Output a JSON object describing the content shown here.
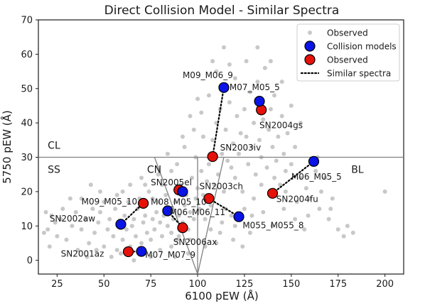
{
  "chart_data": {
    "type": "scatter",
    "title": "Direct Collision Model - Similar Spectra",
    "xlabel": "6100 pEW (Å)",
    "ylabel": "5750 pEW (Å)",
    "xlim": [
      15,
      210
    ],
    "ylim": [
      -4,
      70
    ],
    "xticks": [
      25,
      50,
      75,
      100,
      125,
      150,
      175,
      200
    ],
    "yticks": [
      0,
      10,
      20,
      30,
      40,
      50,
      60,
      70
    ],
    "grid": false,
    "legend_position": "top-right",
    "colors": {
      "background_points": "#c8c8c8",
      "collision_models": "#0a14e6",
      "observed": "#e6120a",
      "marker_edge": "#000000",
      "region_lines": "#808080"
    },
    "legend": [
      {
        "label": "Observed",
        "kind": "small-grey-dot"
      },
      {
        "label": "Collision models",
        "kind": "blue-circle"
      },
      {
        "label": "Observed",
        "kind": "red-circle"
      },
      {
        "label": "Similar spectra",
        "kind": "dotted-line"
      }
    ],
    "region_labels": [
      {
        "text": "CL",
        "x": 20,
        "y": 32.5
      },
      {
        "text": "SS",
        "x": 20,
        "y": 25.5
      },
      {
        "text": "CN",
        "x": 73,
        "y": 25.5
      },
      {
        "text": "BL",
        "x": 182,
        "y": 25.5
      }
    ],
    "boundaries": [
      {
        "x": [
          15,
          210
        ],
        "y": [
          30,
          30
        ]
      },
      {
        "x": [
          100,
          100
        ],
        "y": [
          -4,
          30
        ]
      },
      {
        "x": [
          77,
          100
        ],
        "y": [
          30,
          -4
        ]
      },
      {
        "x": [
          100,
          114
        ],
        "y": [
          -4,
          30
        ]
      }
    ],
    "pairs": [
      {
        "model": {
          "name": "M09_M06_9",
          "x": 114,
          "y": 50.3
        },
        "observed": {
          "name": "SN2003iv",
          "x": 108,
          "y": 30.2
        }
      },
      {
        "model": {
          "name": "M07_M05_5",
          "x": 133,
          "y": 46.3
        },
        "observed": {
          "name": "SN2004gs",
          "x": 134,
          "y": 43.8
        }
      },
      {
        "model": {
          "name": "M06_M05_5",
          "x": 162,
          "y": 28.8
        },
        "observed": {
          "name": "SN2004fu",
          "x": 140,
          "y": 19.5
        }
      },
      {
        "model": {
          "name": "M08_M05_10",
          "x": 92,
          "y": 20
        },
        "observed": {
          "name": "SN2005el",
          "x": 90,
          "y": 20.5
        }
      },
      {
        "model": {
          "name": "M06_M06_11",
          "x": 84,
          "y": 14.4
        },
        "observed": {
          "name": "SN2006ax",
          "x": 92,
          "y": 9.5
        }
      },
      {
        "model": {
          "name": "M055_M055_8",
          "x": 122,
          "y": 12.7
        },
        "observed": {
          "name": "SN2003ch",
          "x": 106,
          "y": 18
        }
      },
      {
        "model": {
          "name": "M09_M05_10",
          "x": 59,
          "y": 10.5
        },
        "observed": {
          "name": "SN2002aw",
          "x": 71,
          "y": 16.6
        }
      },
      {
        "model": {
          "name": "M07_M07_9",
          "x": 70,
          "y": 2.6
        },
        "observed": {
          "name": "SN2001az",
          "x": 63,
          "y": 2.5
        }
      }
    ],
    "annotations": [
      {
        "text": "M09_M06_9",
        "x": 92,
        "y": 53
      },
      {
        "text": "M07_M05_5",
        "x": 117,
        "y": 49.5
      },
      {
        "text": "SN2004gs",
        "x": 133,
        "y": 38.5
      },
      {
        "text": "SN2003iv",
        "x": 112,
        "y": 32
      },
      {
        "text": "M06_M05_5",
        "x": 150,
        "y": 23.5
      },
      {
        "text": "SN2004fu",
        "x": 142,
        "y": 17
      },
      {
        "text": "SN2005el",
        "x": 75,
        "y": 21.8
      },
      {
        "text": "SN2003ch",
        "x": 101,
        "y": 20.7
      },
      {
        "text": "M08_M05_10",
        "x": 75,
        "y": 16.2
      },
      {
        "text": "M06_M06_11",
        "x": 85,
        "y": 13.2
      },
      {
        "text": "M055_M055_8",
        "x": 124,
        "y": 9.3
      },
      {
        "text": "SN2006ax",
        "x": 87,
        "y": 4.5
      },
      {
        "text": "M09_M05_10",
        "x": 38,
        "y": 16.3
      },
      {
        "text": "SN2002aw",
        "x": 21,
        "y": 11.3
      },
      {
        "text": "SN2001az",
        "x": 27,
        "y": 1.1
      },
      {
        "text": "M07_M07_9",
        "x": 72,
        "y": 0.8
      }
    ],
    "background_points": [
      [
        19,
        14
      ],
      [
        20,
        9
      ],
      [
        22,
        13
      ],
      [
        18,
        8
      ],
      [
        21,
        4
      ],
      [
        25,
        7
      ],
      [
        27,
        12
      ],
      [
        30,
        6
      ],
      [
        33,
        10
      ],
      [
        35,
        14
      ],
      [
        38,
        9
      ],
      [
        40,
        12
      ],
      [
        42,
        5
      ],
      [
        45,
        8
      ],
      [
        47,
        11
      ],
      [
        48,
        14
      ],
      [
        50,
        4
      ],
      [
        52,
        9
      ],
      [
        53,
        12
      ],
      [
        55,
        7
      ],
      [
        56,
        15
      ],
      [
        57,
        3
      ],
      [
        58,
        11
      ],
      [
        60,
        6
      ],
      [
        61,
        13
      ],
      [
        62,
        9
      ],
      [
        63,
        17
      ],
      [
        64,
        4
      ],
      [
        65,
        10
      ],
      [
        66,
        12
      ],
      [
        67,
        7
      ],
      [
        68,
        15
      ],
      [
        69,
        18
      ],
      [
        70,
        5
      ],
      [
        71,
        11
      ],
      [
        72,
        13
      ],
      [
        73,
        8
      ],
      [
        74,
        20
      ],
      [
        75,
        6
      ],
      [
        76,
        12
      ],
      [
        77,
        9
      ],
      [
        78,
        14
      ],
      [
        79,
        17
      ],
      [
        80,
        11
      ],
      [
        81,
        7
      ],
      [
        82,
        13
      ],
      [
        83,
        19
      ],
      [
        84,
        10
      ],
      [
        85,
        15
      ],
      [
        86,
        8
      ],
      [
        87,
        12
      ],
      [
        88,
        17
      ],
      [
        89,
        6
      ],
      [
        90,
        13
      ],
      [
        91,
        22
      ],
      [
        92,
        11
      ],
      [
        93,
        16
      ],
      [
        94,
        19
      ],
      [
        95,
        9
      ],
      [
        96,
        14
      ],
      [
        97,
        24
      ],
      [
        98,
        12
      ],
      [
        99,
        18
      ],
      [
        100,
        21
      ],
      [
        101,
        15
      ],
      [
        102,
        26
      ],
      [
        103,
        19
      ],
      [
        104,
        12
      ],
      [
        105,
        23
      ],
      [
        106,
        28
      ],
      [
        107,
        16
      ],
      [
        108,
        35
      ],
      [
        109,
        22
      ],
      [
        110,
        40
      ],
      [
        111,
        25
      ],
      [
        112,
        44
      ],
      [
        113,
        31
      ],
      [
        114,
        20
      ],
      [
        115,
        38
      ],
      [
        116,
        29
      ],
      [
        117,
        46
      ],
      [
        118,
        27
      ],
      [
        119,
        34
      ],
      [
        120,
        24
      ],
      [
        121,
        42
      ],
      [
        122,
        31
      ],
      [
        123,
        37
      ],
      [
        124,
        20
      ],
      [
        125,
        44
      ],
      [
        126,
        36
      ],
      [
        127,
        28
      ],
      [
        128,
        49
      ],
      [
        129,
        33
      ],
      [
        130,
        40
      ],
      [
        131,
        25
      ],
      [
        132,
        52
      ],
      [
        133,
        35
      ],
      [
        134,
        30
      ],
      [
        135,
        41
      ],
      [
        136,
        56
      ],
      [
        137,
        27
      ],
      [
        138,
        38
      ],
      [
        139,
        44
      ],
      [
        140,
        33
      ],
      [
        141,
        48
      ],
      [
        142,
        29
      ],
      [
        143,
        36
      ],
      [
        144,
        22
      ],
      [
        145,
        42
      ],
      [
        146,
        31
      ],
      [
        147,
        26
      ],
      [
        148,
        37
      ],
      [
        150,
        28
      ],
      [
        152,
        33
      ],
      [
        155,
        24
      ],
      [
        158,
        21
      ],
      [
        160,
        18
      ],
      [
        163,
        26
      ],
      [
        165,
        15
      ],
      [
        170,
        12
      ],
      [
        175,
        9
      ],
      [
        178,
        7
      ],
      [
        180,
        10
      ],
      [
        183,
        8
      ],
      [
        200,
        20
      ],
      [
        104,
        4
      ],
      [
        112,
        8
      ],
      [
        118,
        13
      ],
      [
        125,
        15
      ],
      [
        130,
        18
      ],
      [
        95,
        2
      ],
      [
        88,
        1
      ],
      [
        80,
        3
      ],
      [
        75,
        1
      ],
      [
        66,
        0
      ],
      [
        72,
        22
      ],
      [
        60,
        20
      ],
      [
        50,
        17
      ],
      [
        43,
        22
      ],
      [
        38,
        18
      ],
      [
        86,
        26
      ],
      [
        79,
        25
      ],
      [
        93,
        33
      ],
      [
        98,
        38
      ],
      [
        102,
        43
      ],
      [
        106,
        48
      ],
      [
        110,
        55
      ],
      [
        114,
        62
      ],
      [
        108,
        58
      ],
      [
        120,
        53
      ],
      [
        126,
        58
      ],
      [
        132,
        62
      ],
      [
        103,
        36
      ],
      [
        99,
        30
      ],
      [
        115,
        15
      ],
      [
        120,
        10
      ],
      [
        110,
        5
      ],
      [
        135,
        14
      ],
      [
        140,
        10
      ],
      [
        128,
        8
      ],
      [
        146,
        15
      ],
      [
        152,
        12
      ],
      [
        157,
        9
      ],
      [
        164,
        30
      ],
      [
        168,
        24
      ],
      [
        172,
        18
      ],
      [
        155,
        40
      ],
      [
        150,
        45
      ],
      [
        145,
        52
      ],
      [
        139,
        58
      ],
      [
        117,
        57
      ],
      [
        100,
        47
      ],
      [
        96,
        42
      ],
      [
        92,
        36
      ],
      [
        84,
        31
      ],
      [
        89,
        28
      ],
      [
        81,
        22
      ],
      [
        76,
        18
      ],
      [
        70,
        24
      ],
      [
        64,
        22
      ],
      [
        57,
        19
      ],
      [
        48,
        20
      ],
      [
        44,
        15
      ],
      [
        32,
        18
      ],
      [
        28,
        15
      ],
      [
        24,
        11
      ],
      [
        36,
        3
      ],
      [
        41,
        1
      ],
      [
        46,
        3
      ],
      [
        54,
        1
      ],
      [
        59,
        2
      ],
      [
        86,
        4
      ],
      [
        90,
        7
      ],
      [
        96,
        6
      ],
      [
        107,
        9
      ],
      [
        113,
        11
      ],
      [
        119,
        6
      ],
      [
        124,
        4
      ],
      [
        129,
        13
      ],
      [
        134,
        22
      ],
      [
        141,
        24
      ],
      [
        147,
        20
      ],
      [
        153,
        17
      ],
      [
        159,
        13
      ],
      [
        166,
        20
      ],
      [
        171,
        15
      ]
    ]
  }
}
